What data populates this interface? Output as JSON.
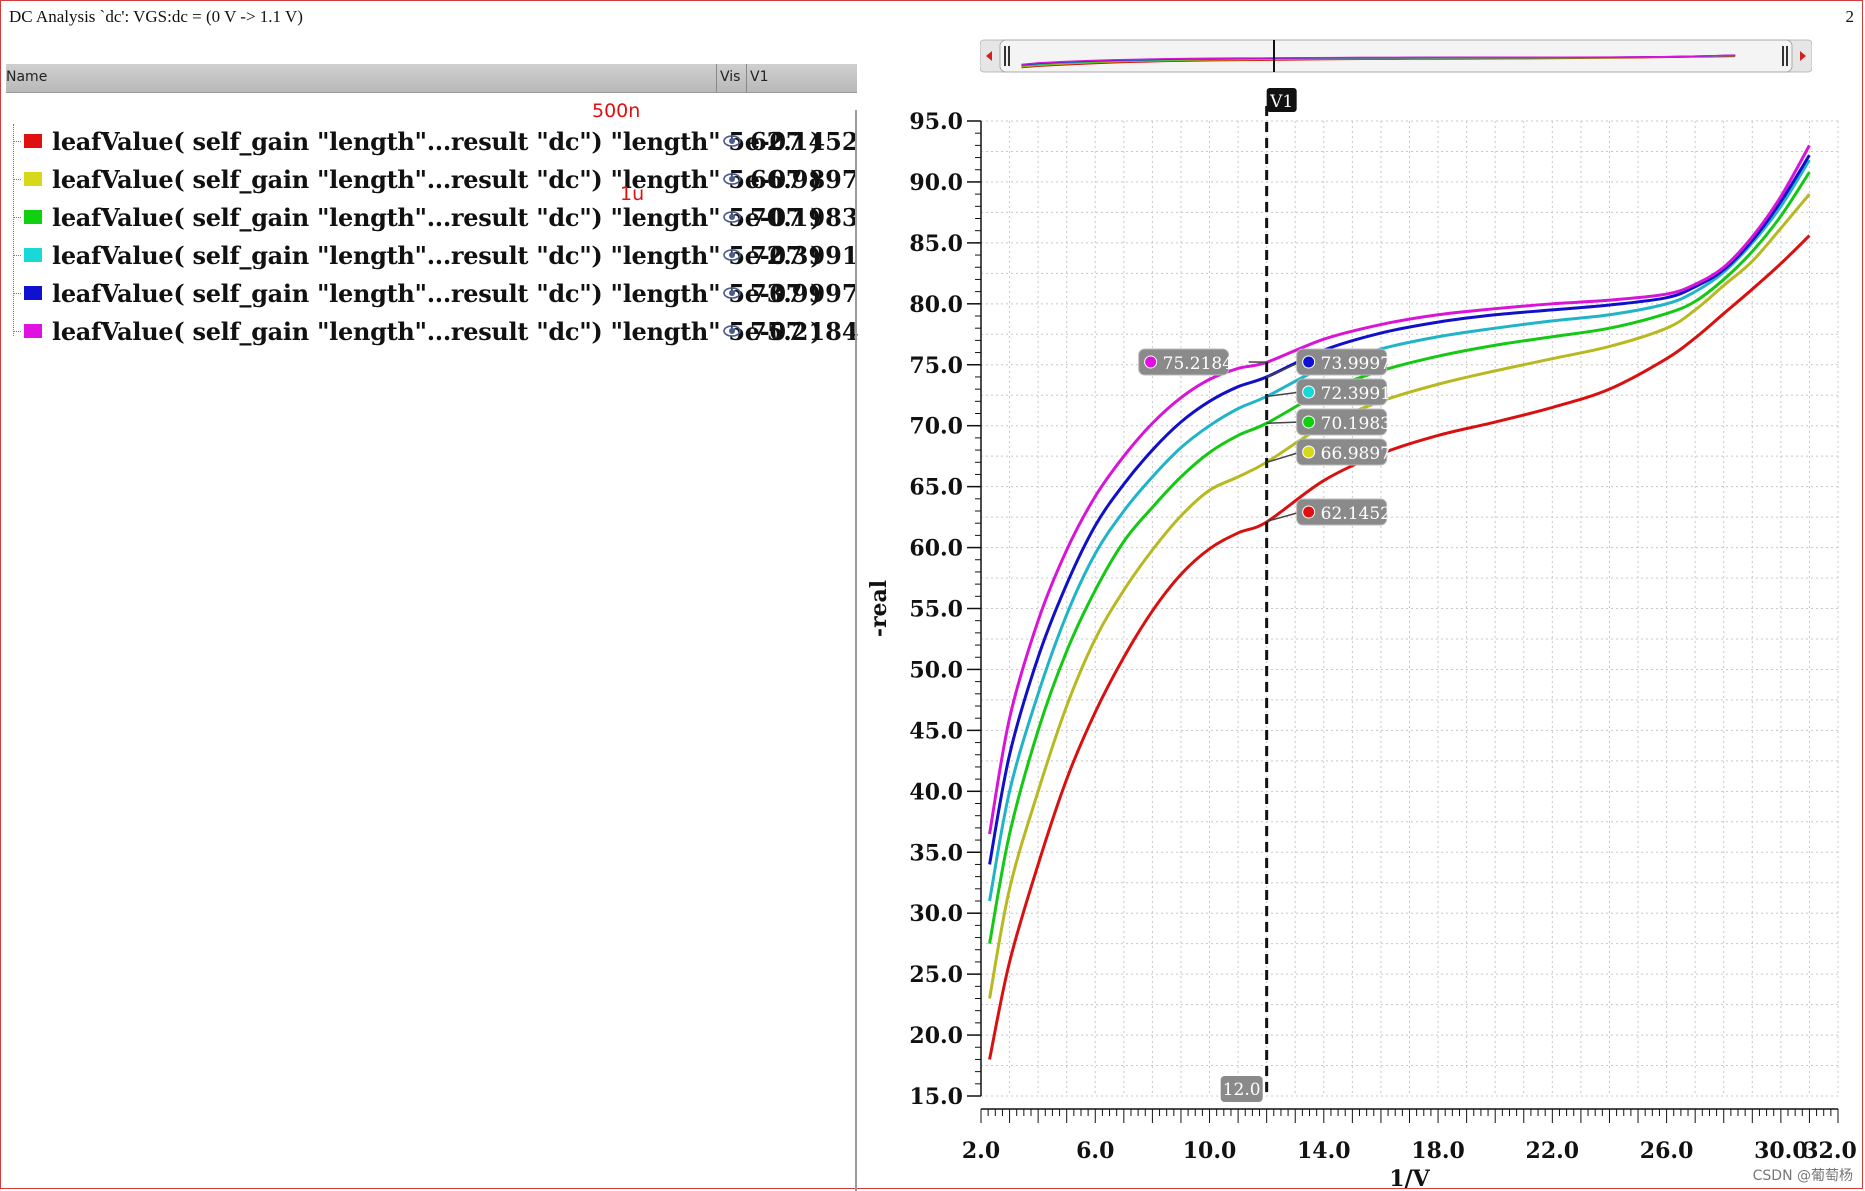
{
  "window": {
    "title": "DC Analysis `dc': VGS:dc = (0 V -> 1.1 V)",
    "subwindow_number": "2"
  },
  "legend": {
    "header_name": "Name",
    "header_vis": "Vis",
    "header_value": "V1",
    "rows": [
      {
        "label": "leafValue( self_gain \"length\"...result \"dc\") \"length\" 5e-07 )",
        "value": "62.1452",
        "color": "#e01010"
      },
      {
        "label": "leafValue( self_gain \"length\"...result \"dc\") \"length\" 5e-07 )",
        "value": "66.9897",
        "color": "#d8d81a"
      },
      {
        "label": "leafValue( self_gain \"length\"...result \"dc\") \"length\" 5e-07 )",
        "value": "70.1983",
        "color": "#10d010"
      },
      {
        "label": "leafValue( self_gain \"length\"...result \"dc\") \"length\" 5e-07 )",
        "value": "72.3991",
        "color": "#18d8d8"
      },
      {
        "label": "leafValue( self_gain \"length\"...result \"dc\") \"length\" 5e-07 )",
        "value": "73.9997",
        "color": "#1010d0"
      },
      {
        "label": "leafValue( self_gain \"length\"...result \"dc\") \"length\" 5e-07 )",
        "value": "75.2184",
        "color": "#e010e0"
      }
    ],
    "annotations": {
      "first": "500n",
      "second": "1u"
    }
  },
  "cursor": {
    "name": "V1",
    "x": 12.0,
    "x_label": "12.0"
  },
  "watermark": "CSDN @葡萄杨",
  "chart_data": {
    "type": "line",
    "xlabel": "1/V",
    "ylabel": "-real",
    "xlim": [
      2.0,
      32.0
    ],
    "ylim": [
      15.0,
      95.0
    ],
    "x_ticks": [
      "2.0",
      "6.0",
      "10.0",
      "14.0",
      "18.0",
      "22.0",
      "26.0",
      "30.0",
      "32.0"
    ],
    "y_ticks": [
      "15.0",
      "20.0",
      "25.0",
      "30.0",
      "35.0",
      "40.0",
      "45.0",
      "50.0",
      "55.0",
      "60.0",
      "65.0",
      "70.0",
      "75.0",
      "80.0",
      "85.0",
      "90.0",
      "95.0"
    ],
    "grid": true,
    "x": [
      2.3,
      3,
      4,
      5,
      6,
      7,
      8,
      9,
      10,
      11,
      12,
      14,
      16,
      18,
      20,
      22,
      24,
      26,
      27,
      28,
      29,
      30,
      31
    ],
    "series": [
      {
        "name": "red",
        "color": "#d81010",
        "values": [
          18,
          26,
          34,
          41,
          46.5,
          51,
          54.8,
          57.8,
          59.9,
          61.2,
          62.1,
          65.5,
          67.7,
          69.2,
          70.3,
          71.5,
          73.0,
          75.5,
          77.2,
          79.2,
          81.2,
          83.3,
          85.6
        ]
      },
      {
        "name": "yellow",
        "color": "#b8b820",
        "values": [
          23,
          32,
          40,
          47,
          52.5,
          56.5,
          59.8,
          62.6,
          64.7,
          65.8,
          67.0,
          70.0,
          72.0,
          73.4,
          74.5,
          75.5,
          76.5,
          78.0,
          79.5,
          81.5,
          83.5,
          86.2,
          89.0
        ]
      },
      {
        "name": "green",
        "color": "#14c814",
        "values": [
          27.5,
          36.5,
          45,
          51.5,
          56.5,
          60.5,
          63.3,
          65.8,
          67.8,
          69.2,
          70.2,
          72.8,
          74.5,
          75.7,
          76.6,
          77.3,
          78.0,
          79.2,
          80.2,
          82.0,
          84.3,
          87.2,
          90.8
        ]
      },
      {
        "name": "cyan",
        "color": "#20b4c8",
        "values": [
          31,
          40,
          48,
          54.5,
          59.5,
          63.0,
          65.8,
          68.2,
          70.0,
          71.4,
          72.4,
          74.8,
          76.3,
          77.3,
          78.0,
          78.6,
          79.1,
          80.0,
          81.0,
          82.6,
          85.0,
          88.0,
          91.8
        ]
      },
      {
        "name": "blue",
        "color": "#1010c8",
        "values": [
          34,
          43,
          51,
          57,
          61.8,
          65.2,
          68.0,
          70.3,
          72.0,
          73.2,
          74.0,
          76.2,
          77.6,
          78.5,
          79.1,
          79.5,
          79.9,
          80.5,
          81.4,
          82.8,
          85.2,
          88.4,
          92.2
        ]
      },
      {
        "name": "magenta",
        "color": "#d814d8",
        "values": [
          36.5,
          46,
          54,
          59.8,
          64.2,
          67.5,
          70.2,
          72.3,
          73.8,
          74.7,
          75.2,
          77.1,
          78.3,
          79.1,
          79.6,
          80.0,
          80.3,
          80.8,
          81.6,
          83.0,
          85.5,
          88.8,
          93.0
        ]
      }
    ],
    "cursor_markers": [
      {
        "value": "75.2184",
        "color": "#e010e0",
        "side": "left"
      },
      {
        "value": "73.9997",
        "color": "#1010d0",
        "side": "right"
      },
      {
        "value": "72.3991",
        "color": "#18d8d8",
        "side": "right"
      },
      {
        "value": "70.1983",
        "color": "#10d010",
        "side": "right"
      },
      {
        "value": "66.9897",
        "color": "#d8d81a",
        "side": "right"
      },
      {
        "value": "62.1452",
        "color": "#e01010",
        "side": "right"
      }
    ]
  }
}
